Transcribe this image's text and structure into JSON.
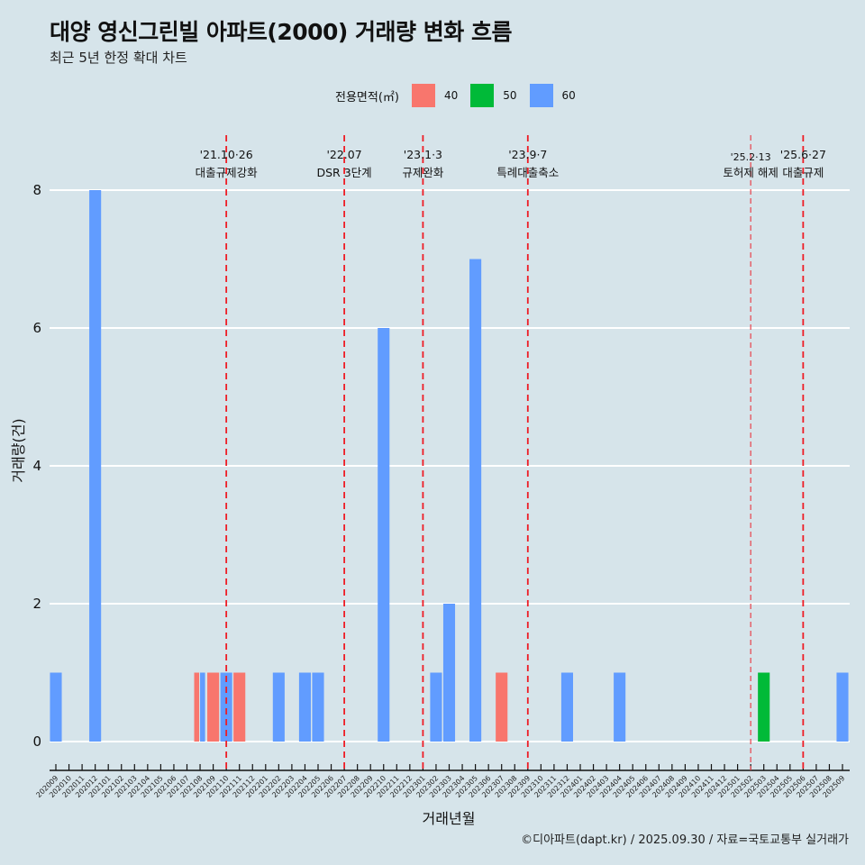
{
  "header": {
    "title": "대양 영신그린빌 아파트(2000) 거래량 변화 흐름",
    "subtitle": "최근 5년 한정 확대 차트"
  },
  "legend": {
    "title": "전용면적(㎡)",
    "items": [
      {
        "label": "40",
        "color": "#F8766D"
      },
      {
        "label": "50",
        "color": "#00BA38"
      },
      {
        "label": "60",
        "color": "#619CFF"
      }
    ]
  },
  "caption": "©디아파트(dapt.kr) / 2025.09.30 / 자료=국토교통부 실거래가",
  "chart_data": {
    "type": "bar",
    "title": "대양 영신그린빌 아파트(2000) 거래량 변화 흐름",
    "xlabel": "거래년월",
    "ylabel": "거래량(건)",
    "ylim": [
      0,
      8
    ],
    "yticks": [
      "0",
      "2",
      "4",
      "6",
      "8"
    ],
    "grid": true,
    "legend_position": "top",
    "categories": [
      "202009",
      "202010",
      "202011",
      "202012",
      "202101",
      "202102",
      "202103",
      "202104",
      "202105",
      "202106",
      "202107",
      "202108",
      "202109",
      "202110",
      "202111",
      "202112",
      "202201",
      "202202",
      "202203",
      "202204",
      "202205",
      "202206",
      "202207",
      "202208",
      "202209",
      "202210",
      "202211",
      "202212",
      "202301",
      "202302",
      "202303",
      "202304",
      "202305",
      "202306",
      "202307",
      "202308",
      "202309",
      "202310",
      "202311",
      "202312",
      "202401",
      "202402",
      "202403",
      "202404",
      "202405",
      "202406",
      "202407",
      "202408",
      "202409",
      "202410",
      "202411",
      "202412",
      "202501",
      "202502",
      "202503",
      "202504",
      "202505",
      "202506",
      "202507",
      "202508",
      "202509"
    ],
    "series": [
      {
        "name": "40",
        "color": "#F8766D",
        "points": {
          "202108": 1,
          "202109": 1,
          "202111": 1,
          "202307": 1
        }
      },
      {
        "name": "50",
        "color": "#00BA38",
        "points": {
          "202503": 1
        }
      },
      {
        "name": "60",
        "color": "#619CFF",
        "points": {
          "202009": 1,
          "202012": 8,
          "202108": 1,
          "202110": 1,
          "202202": 1,
          "202204": 1,
          "202205": 1,
          "202210": 6,
          "202302": 1,
          "202303": 2,
          "202305": 7,
          "202312": 1,
          "202404": 1,
          "202509": 1
        }
      }
    ],
    "annotations": [
      {
        "month": "202110",
        "date": "'21.10·26",
        "label": "대출규제강화",
        "minor": false
      },
      {
        "month": "202207",
        "date": "'22.07",
        "label": "DSR 3단계",
        "minor": false
      },
      {
        "month": "202301",
        "date": "'23.1·3",
        "label": "규제완화",
        "minor": false
      },
      {
        "month": "202309",
        "date": "'23.9·7",
        "label": "특례대출축소",
        "minor": false
      },
      {
        "month": "202502",
        "date": "'25.2·13",
        "label": "토허제 해제",
        "minor": true
      },
      {
        "month": "202506",
        "date": "'25.6·27",
        "label": "대출규제",
        "minor": false
      }
    ]
  }
}
